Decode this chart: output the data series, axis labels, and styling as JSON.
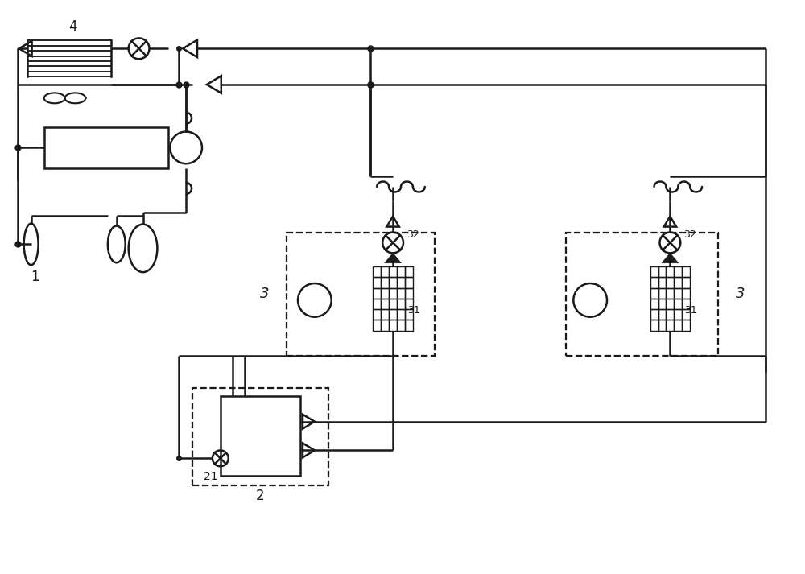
{
  "bg_color": "#ffffff",
  "line_color": "#1a1a1a",
  "lw": 1.8,
  "fig_width": 10.0,
  "fig_height": 7.13
}
